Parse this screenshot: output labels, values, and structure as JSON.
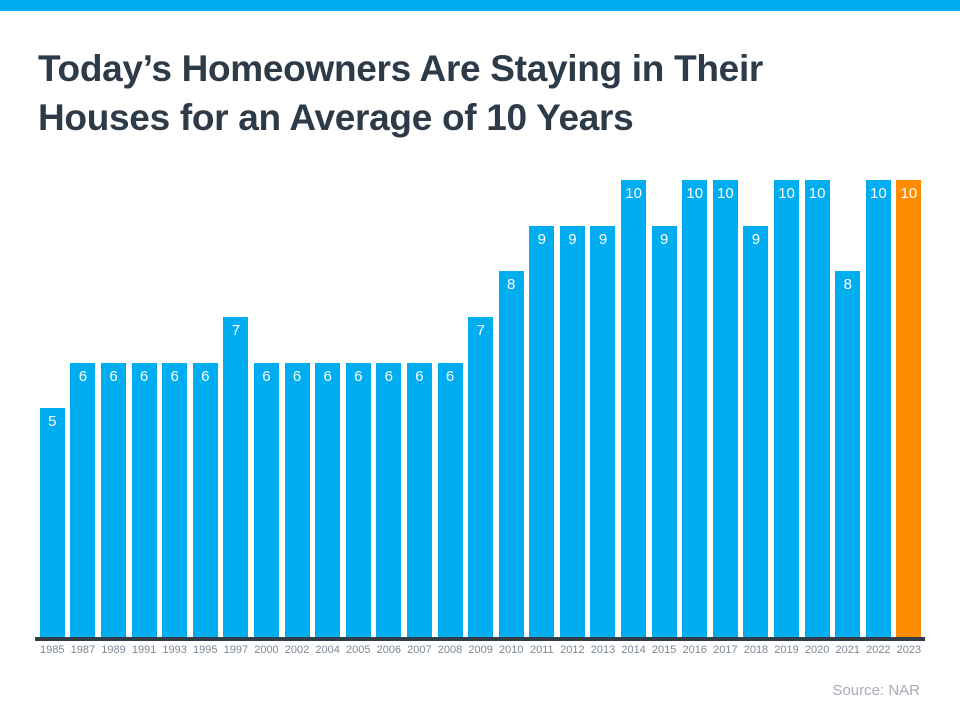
{
  "header": {
    "title_line1": "Today’s Homeowners Are Staying in Their",
    "title_line2": "Houses for an Average of 10 Years"
  },
  "footer": {
    "source": "Source: NAR"
  },
  "colors": {
    "accent_blue": "#00AEEF",
    "highlight_orange": "#FF8C00",
    "title_text": "#2D3A48",
    "axis_line": "#313E49",
    "tick_text": "#7D8893",
    "source_text": "#A7ADB6",
    "value_label_text": "#FFFFFF"
  },
  "chart_data": {
    "type": "bar",
    "title": "Today’s Homeowners Are Staying in Their Houses for an Average of 10 Years",
    "xlabel": "",
    "ylabel": "",
    "ylim": [
      0,
      10
    ],
    "grid": false,
    "legend": false,
    "value_labels_shown": true,
    "categories": [
      "1985",
      "1987",
      "1989",
      "1991",
      "1993",
      "1995",
      "1997",
      "2000",
      "2002",
      "2004",
      "2005",
      "2006",
      "2007",
      "2008",
      "2009",
      "2010",
      "2011",
      "2012",
      "2013",
      "2014",
      "2015",
      "2016",
      "2017",
      "2018",
      "2019",
      "2020",
      "2021",
      "2022",
      "2023"
    ],
    "values": [
      5,
      6,
      6,
      6,
      6,
      6,
      7,
      6,
      6,
      6,
      6,
      6,
      6,
      6,
      7,
      8,
      9,
      9,
      9,
      10,
      9,
      10,
      10,
      9,
      10,
      10,
      8,
      10,
      10
    ],
    "bar_color": "#00AEEF",
    "highlight_color": "#FF8C00",
    "highlight_index": 28,
    "source": "Source: NAR"
  }
}
